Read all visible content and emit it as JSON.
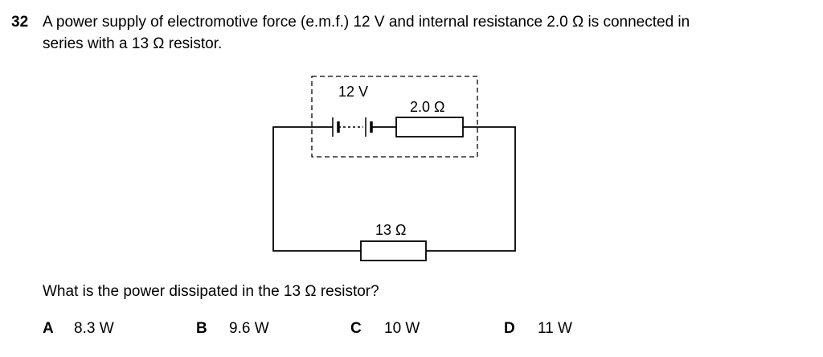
{
  "question": {
    "number": "32",
    "stem_line1": "A power supply of electromotive force (e.m.f.) 12 V and internal resistance 2.0 Ω is connected in",
    "stem_line2": "series with a 13 Ω resistor.",
    "prompt": "What is the power dissipated in the 13 Ω resistor?"
  },
  "circuit": {
    "emf_label": "12 V",
    "internal_resistance_label": "2.0 Ω",
    "external_resistor_label": "13 Ω"
  },
  "options": [
    {
      "letter": "A",
      "value": "8.3 W"
    },
    {
      "letter": "B",
      "value": "9.6 W"
    },
    {
      "letter": "C",
      "value": "10 W"
    },
    {
      "letter": "D",
      "value": "11 W"
    }
  ]
}
